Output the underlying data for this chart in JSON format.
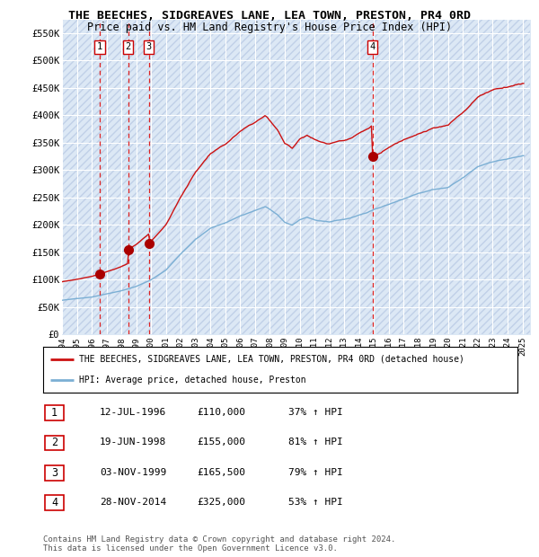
{
  "title": "THE BEECHES, SIDGREAVES LANE, LEA TOWN, PRESTON, PR4 0RD",
  "subtitle": "Price paid vs. HM Land Registry's House Price Index (HPI)",
  "ylim": [
    0,
    575000
  ],
  "yticks": [
    0,
    50000,
    100000,
    150000,
    200000,
    250000,
    300000,
    350000,
    400000,
    450000,
    500000,
    550000
  ],
  "ytick_labels": [
    "£0",
    "£50K",
    "£100K",
    "£150K",
    "£200K",
    "£250K",
    "£300K",
    "£350K",
    "£400K",
    "£450K",
    "£500K",
    "£550K"
  ],
  "bg_color": "#dce8f5",
  "grid_color": "#ffffff",
  "hatch_line_color": "#c0d0e8",
  "sale_date_nums": [
    1996.53,
    1998.46,
    1999.84,
    2014.91
  ],
  "sale_prices": [
    110000,
    155000,
    165500,
    325000
  ],
  "sale_labels": [
    "1",
    "2",
    "3",
    "4"
  ],
  "legend_line1": "THE BEECHES, SIDGREAVES LANE, LEA TOWN, PRESTON, PR4 0RD (detached house)",
  "legend_line2": "HPI: Average price, detached house, Preston",
  "table_entries": [
    {
      "num": "1",
      "date": "12-JUL-1996",
      "price": "£110,000",
      "hpi": "37% ↑ HPI"
    },
    {
      "num": "2",
      "date": "19-JUN-1998",
      "price": "£155,000",
      "hpi": "81% ↑ HPI"
    },
    {
      "num": "3",
      "date": "03-NOV-1999",
      "price": "£165,500",
      "hpi": "79% ↑ HPI"
    },
    {
      "num": "4",
      "date": "28-NOV-2014",
      "price": "£325,000",
      "hpi": "53% ↑ HPI"
    }
  ],
  "footnote": "Contains HM Land Registry data © Crown copyright and database right 2024.\nThis data is licensed under the Open Government Licence v3.0.",
  "red_line_color": "#cc1111",
  "blue_line_color": "#7bafd4",
  "marker_color": "#aa0000",
  "vline_color": "#dd2222",
  "xlim_start": 1994.0,
  "xlim_end": 2025.5
}
